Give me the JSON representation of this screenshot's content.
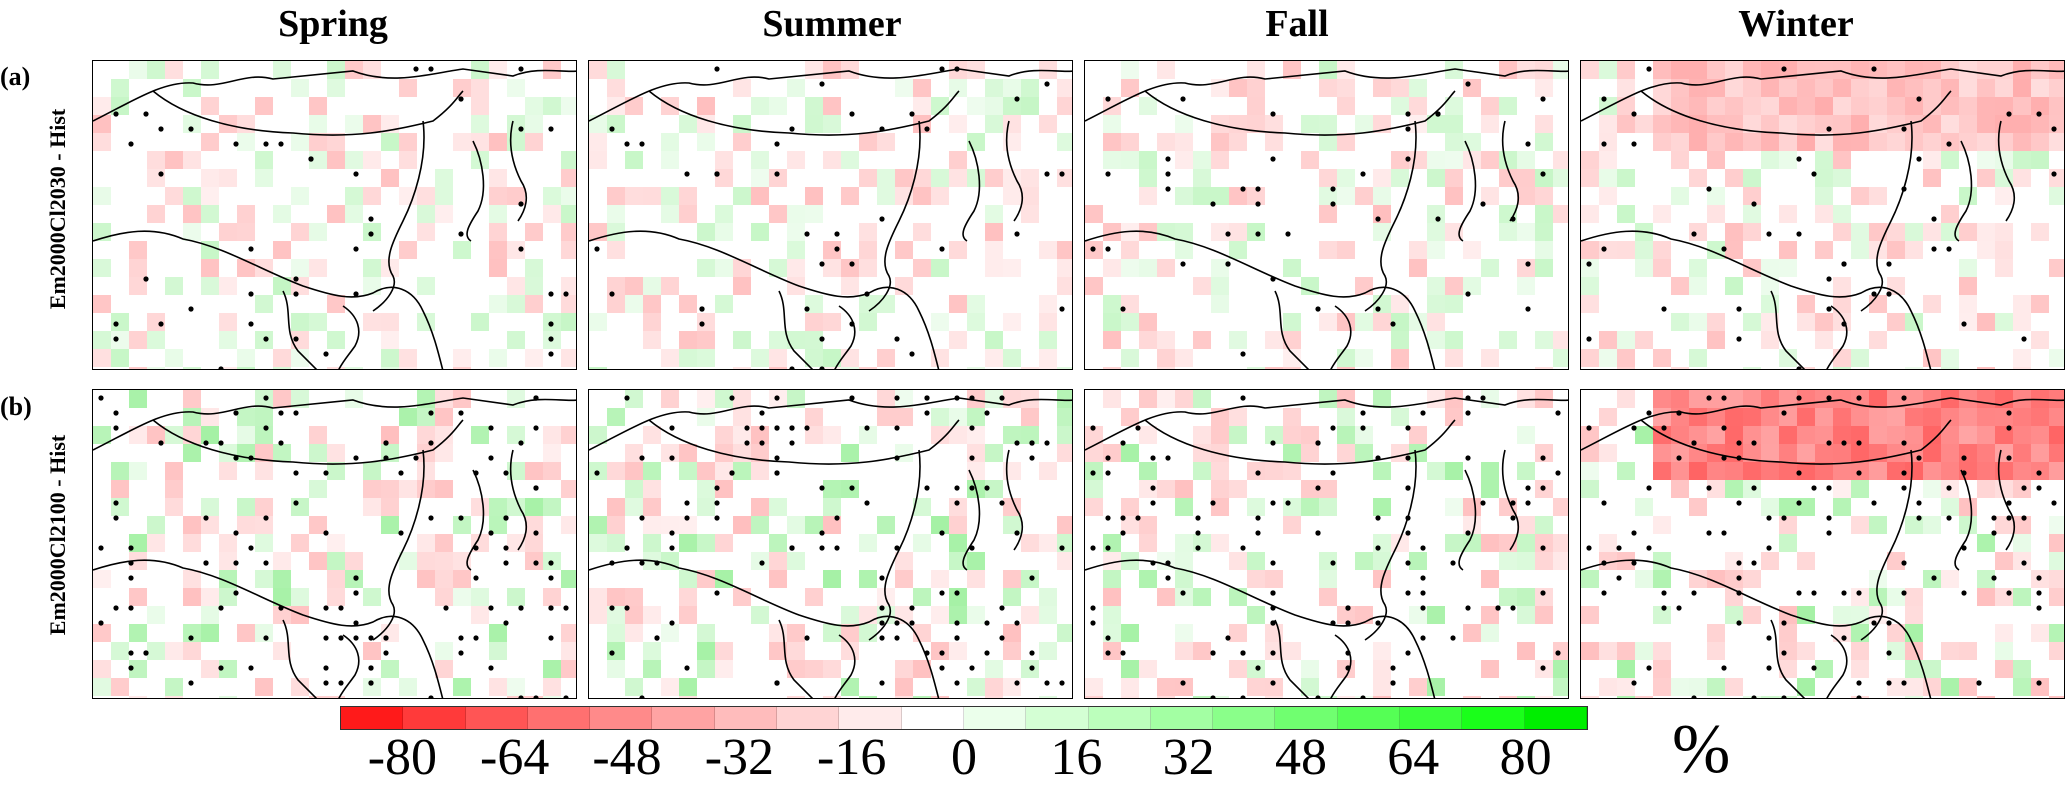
{
  "columns": [
    "Spring",
    "Summer",
    "Fall",
    "Winter"
  ],
  "rows": [
    {
      "letter": "(a)",
      "label": "Em2000Cl2030 - Hist"
    },
    {
      "letter": "(b)",
      "label": "Em2000Cl2100 - Hist"
    }
  ],
  "colorbar": {
    "ticks": [
      "-80",
      "-64",
      "-48",
      "-32",
      "-16",
      "0",
      "16",
      "32",
      "48",
      "64",
      "80"
    ],
    "unit": "%",
    "colors": [
      "#ff1a1a",
      "#ff3a3a",
      "#ff5555",
      "#ff7070",
      "#ff8a8a",
      "#ffa3a3",
      "#ffbcbc",
      "#ffd4d4",
      "#ffebeb",
      "#ffffff",
      "#ebffeb",
      "#d4ffd4",
      "#bcffbc",
      "#a3ffa3",
      "#8aff8a",
      "#70ff70",
      "#55ff55",
      "#3aff3a",
      "#1aff1a",
      "#00ee00"
    ],
    "negative_color": "#ff3030",
    "positive_color": "#22ee22"
  }
}
